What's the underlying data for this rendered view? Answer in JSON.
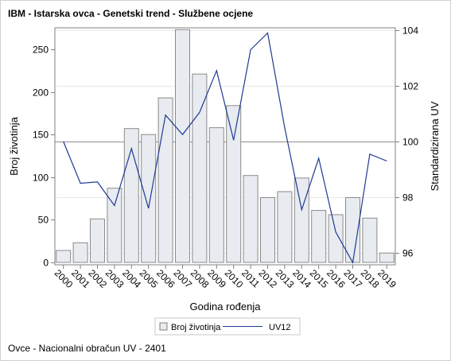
{
  "title": "IBM - Istarska ovca - Genetski trend - Službene ocjene",
  "footnote": "Ovce - Nacionalni obračun UV - 2401",
  "chart_data": {
    "type": "bar",
    "categories": [
      "2000",
      "2001",
      "2002",
      "2003",
      "2004",
      "2005",
      "2006",
      "2007",
      "2008",
      "2009",
      "2010",
      "2011",
      "2012",
      "2013",
      "2014",
      "2015",
      "2016",
      "2017",
      "2018",
      "2019"
    ],
    "series": [
      {
        "name": "Broj životinja",
        "type": "bar",
        "axis": "left",
        "color": "#e8ebf0",
        "values": [
          14,
          23,
          51,
          87,
          157,
          150,
          193,
          273,
          221,
          158,
          184,
          102,
          76,
          83,
          99,
          61,
          56,
          76,
          52,
          11
        ]
      },
      {
        "name": "UV12",
        "type": "line",
        "axis": "right",
        "color": "#1f3a93",
        "values": [
          100.0,
          98.5,
          98.55,
          97.7,
          99.75,
          97.6,
          100.95,
          100.25,
          101.05,
          102.55,
          100.05,
          103.3,
          103.9,
          100.5,
          97.55,
          99.4,
          96.75,
          95.65,
          99.55,
          99.3
        ]
      }
    ],
    "xlabel": "Godina rođenja",
    "ylabel": "Broj životinja",
    "y2label": "Standardizirana UV",
    "ylim": [
      0,
      275
    ],
    "yticks": [
      0,
      50,
      100,
      150,
      200,
      250
    ],
    "y2lim": [
      95.4,
      104.2
    ],
    "y2ticks": [
      96,
      98,
      100,
      102,
      104
    ],
    "reference_line_y2": 100,
    "grid": "horizontal-right-axis",
    "legend_position": "bottom"
  }
}
